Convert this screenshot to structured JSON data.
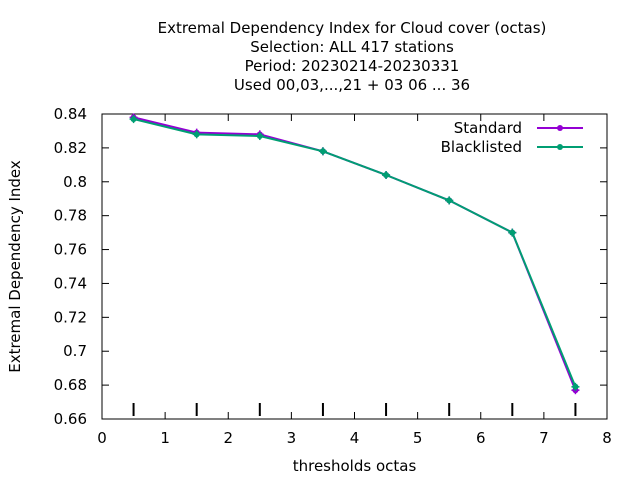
{
  "chart_data": {
    "type": "line",
    "title_lines": [
      "Extremal Dependency Index  for Cloud cover (octas)",
      "Selection: ALL     417 stations",
      "Period: 20230214-20230331",
      "Used  00,03,...,21  + 03 06 ... 36"
    ],
    "xlabel": "thresholds octas",
    "ylabel": "Extremal Dependency Index",
    "xlim": [
      0,
      8
    ],
    "ylim": [
      0.66,
      0.84
    ],
    "xticks": [
      0,
      1,
      2,
      3,
      4,
      5,
      6,
      7,
      8
    ],
    "yticks": [
      0.66,
      0.68,
      0.7,
      0.72,
      0.74,
      0.76,
      0.78,
      0.8,
      0.82,
      0.84
    ],
    "xtick_labels": [
      "0",
      "1",
      "2",
      "3",
      "4",
      "5",
      "6",
      "7",
      "8"
    ],
    "ytick_labels": [
      "0.66",
      "0.68",
      "0.7",
      "0.72",
      "0.74",
      "0.76",
      "0.78",
      "0.8",
      "0.82",
      "0.84"
    ],
    "threshold_marks": [
      0.5,
      1.5,
      2.5,
      3.5,
      4.5,
      5.5,
      6.5,
      7.5
    ],
    "x": [
      0.5,
      1.5,
      2.5,
      3.5,
      4.5,
      5.5,
      6.5,
      7.5
    ],
    "series": [
      {
        "name": "Standard",
        "color": "#9400d3",
        "values": [
          0.838,
          0.829,
          0.828,
          0.818,
          0.804,
          0.789,
          0.77,
          0.677
        ]
      },
      {
        "name": "Blacklisted",
        "color": "#009e73",
        "values": [
          0.837,
          0.828,
          0.827,
          0.818,
          0.804,
          0.789,
          0.77,
          0.679
        ]
      }
    ],
    "grid": false,
    "legend_position": "top-right"
  }
}
